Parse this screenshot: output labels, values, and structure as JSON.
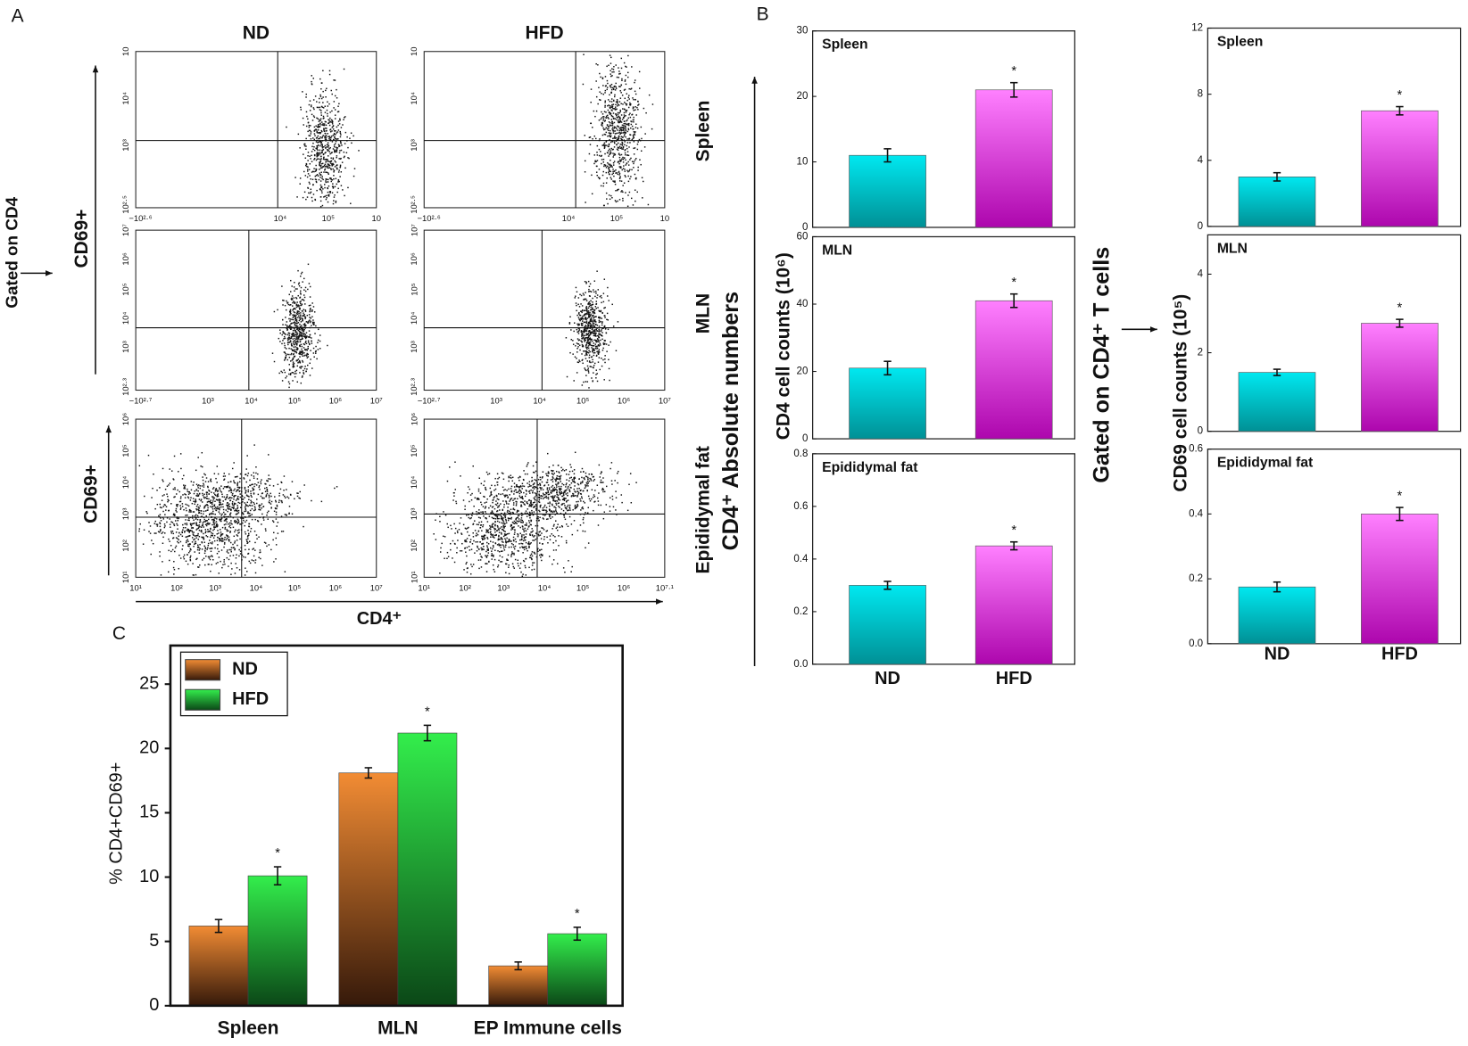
{
  "panel_labels": [
    "A",
    "B",
    "C"
  ],
  "flow": {
    "column_titles": [
      "ND",
      "HFD"
    ],
    "row_labels": [
      "Spleen",
      "MLN",
      "Epididymal fat"
    ],
    "gate_label": "Gated on CD4",
    "y_axis_label": "CD69+",
    "x_axis_label": "CD4⁺",
    "plots": [
      {
        "xticks": [
          "−10²·⁶",
          "10⁴",
          "10⁵",
          "10"
        ],
        "yticks": [
          "10²·⁵",
          "10³",
          "10⁴",
          "10"
        ]
      },
      {
        "xticks": [
          "−10²·⁶",
          "10⁴",
          "10⁵",
          "10"
        ],
        "yticks": [
          "10²·⁵",
          "10³",
          "10⁴",
          "10"
        ]
      },
      {
        "xticks": [
          "−10²·⁷",
          "10³",
          "10⁴",
          "10⁵",
          "10⁶",
          "10⁷"
        ],
        "yticks": [
          "10²·³",
          "10³",
          "10⁴",
          "10⁵",
          "10⁶",
          "10⁷"
        ]
      },
      {
        "xticks": [
          "−10²·⁷",
          "10³",
          "10⁴",
          "10⁵",
          "10⁶",
          "10⁷"
        ],
        "yticks": [
          "10²·³",
          "10³",
          "10⁴",
          "10⁵",
          "10⁶",
          "10⁷"
        ]
      },
      {
        "xticks": [
          "10¹",
          "10²",
          "10³",
          "10⁴",
          "10⁵",
          "10⁶",
          "10⁷"
        ],
        "yticks": [
          "10¹",
          "10²",
          "10³",
          "10⁴",
          "10⁵",
          "10⁶"
        ]
      },
      {
        "xticks": [
          "10¹",
          "10²",
          "10³",
          "10⁴",
          "10⁵",
          "10⁶",
          "10⁷·¹"
        ],
        "yticks": [
          "10¹",
          "10²",
          "10³",
          "10⁴",
          "10⁵",
          "10⁶"
        ]
      }
    ]
  },
  "panel_b": {
    "categories": [
      "ND",
      "HFD"
    ],
    "colors": [
      "#00e8f0",
      "#ff80ff"
    ],
    "left_ylabel": "CD4 cell counts (10⁶)",
    "left_title": "CD4⁺ Absolute numbers",
    "right_ylabel": "CD69 cell counts (10⁵)",
    "right_title": "Gated on CD4⁺ T cells"
  },
  "chart_data": [
    {
      "type": "bar",
      "title": "Spleen",
      "values": [
        11,
        21
      ],
      "errors": [
        1,
        1.1
      ],
      "significance": [
        null,
        "*"
      ],
      "ylim": [
        0,
        30
      ],
      "yticks": [
        0,
        10,
        20,
        30
      ]
    },
    {
      "type": "bar",
      "title": "MLN",
      "values": [
        21,
        41
      ],
      "errors": [
        2,
        2
      ],
      "significance": [
        null,
        "*"
      ],
      "ylim": [
        0,
        60
      ],
      "yticks": [
        0,
        20,
        40,
        60
      ]
    },
    {
      "type": "bar",
      "title": "Epididymal fat",
      "values": [
        0.3,
        0.45
      ],
      "errors": [
        0.015,
        0.015
      ],
      "significance": [
        null,
        "*"
      ],
      "ylim": [
        0,
        0.8
      ],
      "yticks": [
        {
          "value": 0,
          "label": "0.0"
        },
        0.2,
        0.4,
        0.6,
        0.8
      ]
    },
    {
      "type": "bar",
      "title": "Spleen",
      "values": [
        3,
        7
      ],
      "errors": [
        0.25,
        0.25
      ],
      "significance": [
        null,
        "*"
      ],
      "ylim": [
        0,
        12
      ],
      "yticks": [
        0,
        4,
        8,
        12
      ]
    },
    {
      "type": "bar",
      "title": "MLN",
      "values": [
        1.5,
        2.75
      ],
      "errors": [
        0.08,
        0.1
      ],
      "significance": [
        null,
        "*"
      ],
      "ylim": [
        0,
        5
      ],
      "yticks": [
        0,
        2,
        4
      ]
    },
    {
      "type": "bar",
      "title": "Epididymal fat",
      "values": [
        0.175,
        0.4
      ],
      "errors": [
        0.015,
        0.02
      ],
      "significance": [
        null,
        "*"
      ],
      "ylim": [
        0,
        0.6
      ],
      "yticks": [
        {
          "value": 0,
          "label": "0.0"
        },
        0.2,
        0.4,
        0.6
      ]
    },
    {
      "type": "grouped_bar",
      "y_label": "% CD4+CD69+",
      "categories": [
        "Spleen",
        "MLN",
        "EP Immune cells"
      ],
      "series": [
        {
          "name": "ND",
          "color": "#f28c34",
          "values": [
            6.2,
            18.1,
            3.1
          ],
          "errors": [
            0.5,
            0.4,
            0.3
          ]
        },
        {
          "name": "HFD",
          "color": "#33ee4c",
          "values": [
            10.1,
            21.2,
            5.6
          ],
          "errors": [
            0.7,
            0.6,
            0.5
          ],
          "significance": [
            "*",
            "*",
            "*"
          ]
        }
      ],
      "ylim": [
        0,
        28
      ],
      "yticks": [
        0,
        5,
        10,
        15,
        20,
        25
      ],
      "legend": "upper left"
    }
  ]
}
